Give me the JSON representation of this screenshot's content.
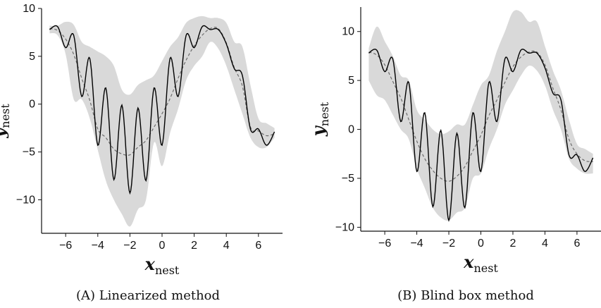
{
  "figure": {
    "caption_a": "(A) Linearized method",
    "caption_b": "(B) Blind box method"
  },
  "colors": {
    "band": "#d9d9d9",
    "true_line": "#000000",
    "mean_line": "#6b6b6b",
    "axis": "#111111"
  },
  "chart_data": [
    {
      "type": "line",
      "xlabel_main": "x",
      "xlabel_sub": "nest",
      "ylabel_main": "y",
      "ylabel_sub": "nest",
      "xlim": [
        -7.5,
        7.5
      ],
      "ylim": [
        -13.5,
        10
      ],
      "xticks": [
        -6,
        -4,
        -2,
        0,
        2,
        4,
        6
      ],
      "yticks": [
        10,
        5,
        0,
        -5,
        -10
      ],
      "xrange": [
        -7,
        7
      ],
      "grid": false,
      "legend": "none",
      "series": [
        {
          "role": "true_function",
          "style": "solid-black",
          "x": [
            -7,
            -6.5,
            -6,
            -5.5,
            -5,
            -4.5,
            -4,
            -3.5,
            -3,
            -2.5,
            -2,
            -1.5,
            -1,
            -0.5,
            0,
            0.5,
            1,
            1.5,
            2,
            2.5,
            3,
            3.5,
            4,
            4.5,
            5,
            5.5,
            6,
            6.5,
            7
          ],
          "y": [
            7.8,
            8.1,
            5.9,
            7.2,
            0.8,
            4.8,
            -4.3,
            1.7,
            -7.9,
            -0.1,
            -9.3,
            -0.4,
            -8.0,
            1.7,
            -4.3,
            4.8,
            0.8,
            7.2,
            5.9,
            8.1,
            7.8,
            7.8,
            6.3,
            3.7,
            3.0,
            -2.6,
            -2.6,
            -4.3,
            -2.9
          ]
        },
        {
          "role": "predictive_mean",
          "style": "dashed-gray",
          "x": [
            -7,
            -6.5,
            -6,
            -5.5,
            -5,
            -4.5,
            -4,
            -3.5,
            -3,
            -2.5,
            -2,
            -1.5,
            -1,
            -0.5,
            0,
            0.5,
            1,
            1.5,
            2,
            2.5,
            3,
            3.5,
            4,
            4.5,
            5,
            5.5,
            6,
            6.5,
            7
          ],
          "y": [
            7.9,
            7.7,
            6.8,
            5.2,
            2.7,
            0.4,
            -2.6,
            -3.5,
            -4.7,
            -5.2,
            -5.3,
            -4.5,
            -3.8,
            -2.4,
            -1.0,
            0.6,
            2.7,
            4.6,
            6.1,
            7.2,
            7.9,
            7.9,
            6.4,
            3.8,
            1.9,
            -2.4,
            -2.8,
            -3.3,
            -3.1
          ]
        },
        {
          "role": "uncertainty_band",
          "style": "gray-fill",
          "x": [
            -7,
            -6.5,
            -6,
            -5.5,
            -5,
            -4.5,
            -4,
            -3.5,
            -3,
            -2.5,
            -2,
            -1.5,
            -1,
            -0.5,
            0,
            0.5,
            1,
            1.5,
            2,
            2.5,
            3,
            3.5,
            4,
            4.5,
            5,
            5.5,
            6,
            6.5,
            7
          ],
          "lower": [
            7.4,
            7.2,
            5.2,
            0.5,
            0.5,
            -1.5,
            -4.8,
            -8.0,
            -10.0,
            -11.5,
            -12.8,
            -11.0,
            -10.0,
            -4.0,
            -6.5,
            -3.0,
            -0.5,
            2.5,
            4.0,
            5.0,
            6.5,
            5.8,
            4.0,
            1.5,
            -1.0,
            -3.5,
            -4.5,
            -4.5,
            -3.5
          ],
          "upper": [
            8.2,
            8.2,
            8.6,
            8.3,
            6.5,
            6.0,
            5.5,
            5.0,
            4.0,
            1.5,
            1.0,
            2.0,
            2.5,
            3.0,
            4.5,
            6.0,
            7.0,
            8.5,
            9.0,
            9.2,
            9.0,
            9.0,
            8.5,
            6.5,
            6.0,
            2.0,
            -1.5,
            -2.0,
            -2.5
          ]
        }
      ]
    },
    {
      "type": "line",
      "xlabel_main": "x",
      "xlabel_sub": "nest",
      "ylabel_main": "y",
      "ylabel_sub": "nest",
      "xlim": [
        -7.5,
        7.5
      ],
      "ylim": [
        -10.4,
        12.5
      ],
      "xticks": [
        -6,
        -4,
        -2,
        0,
        2,
        4,
        6
      ],
      "yticks": [
        10,
        5,
        0,
        -5,
        -10
      ],
      "xrange": [
        -7,
        7
      ],
      "grid": false,
      "legend": "none",
      "series": [
        {
          "role": "true_function",
          "style": "solid-black",
          "x": [
            -7,
            -6.5,
            -6,
            -5.5,
            -5,
            -4.5,
            -4,
            -3.5,
            -3,
            -2.5,
            -2,
            -1.5,
            -1,
            -0.5,
            0,
            0.5,
            1,
            1.5,
            2,
            2.5,
            3,
            3.5,
            4,
            4.5,
            5,
            5.5,
            6,
            6.5,
            7
          ],
          "y": [
            7.8,
            8.1,
            5.9,
            7.2,
            0.8,
            4.8,
            -4.3,
            1.7,
            -7.9,
            -0.1,
            -9.3,
            -0.4,
            -8.0,
            1.7,
            -4.3,
            4.8,
            0.8,
            7.2,
            5.9,
            8.1,
            7.8,
            7.8,
            6.3,
            3.7,
            3.0,
            -2.6,
            -2.6,
            -4.3,
            -2.9
          ]
        },
        {
          "role": "predictive_mean",
          "style": "dashed-gray",
          "x": [
            -7,
            -6.5,
            -6,
            -5.5,
            -5,
            -4.5,
            -4,
            -3.5,
            -3,
            -2.5,
            -2,
            -1.5,
            -1,
            -0.5,
            0,
            0.5,
            1,
            1.5,
            2,
            2.5,
            3,
            3.5,
            4,
            4.5,
            5,
            5.5,
            6,
            6.5,
            7
          ],
          "y": [
            7.9,
            7.6,
            6.6,
            4.9,
            3.2,
            1.0,
            -1.2,
            -3.0,
            -4.2,
            -5.0,
            -5.3,
            -4.8,
            -3.8,
            -2.2,
            -0.6,
            1.4,
            3.0,
            4.8,
            6.4,
            7.4,
            7.9,
            7.9,
            6.6,
            4.2,
            2.0,
            -1.0,
            -2.5,
            -3.2,
            -3.3
          ]
        },
        {
          "role": "uncertainty_band",
          "style": "gray-fill",
          "x": [
            -7,
            -6.5,
            -6,
            -5.5,
            -5,
            -4.5,
            -4,
            -3.5,
            -3,
            -2.5,
            -2,
            -1.5,
            -1,
            -0.5,
            0,
            0.5,
            1,
            1.5,
            2,
            2.5,
            3,
            3.5,
            4,
            4.5,
            5,
            5.5,
            6,
            6.5,
            7
          ],
          "lower": [
            5.0,
            3.5,
            3.0,
            1.5,
            0.0,
            -1.0,
            -4.0,
            -6.0,
            -8.0,
            -9.0,
            -9.3,
            -8.5,
            -8.0,
            -5.0,
            -4.5,
            -2.0,
            0.0,
            2.5,
            4.0,
            5.5,
            6.5,
            6.0,
            4.5,
            2.0,
            0.0,
            -3.0,
            -4.0,
            -4.5,
            -4.5
          ]
        },
        {
          "role": "uncertainty_band_upper",
          "style": "gray-fill",
          "x": [
            -7,
            -6.5,
            -6,
            -5.5,
            -5,
            -4.5,
            -4,
            -3.5,
            -3,
            -2.5,
            -2,
            -1.5,
            -1,
            -0.5,
            0,
            0.5,
            1,
            1.5,
            2,
            2.5,
            3,
            3.5,
            4,
            4.5,
            5,
            5.5,
            6,
            6.5,
            7
          ],
          "upper": [
            8.3,
            10.5,
            9.0,
            7.5,
            5.5,
            5.0,
            2.0,
            1.0,
            0.0,
            -0.5,
            -0.2,
            0.5,
            0.5,
            2.5,
            4.5,
            5.5,
            8.0,
            10.0,
            12.0,
            12.0,
            11.0,
            11.0,
            8.5,
            6.0,
            4.0,
            1.0,
            -1.5,
            -2.0,
            -2.5
          ]
        }
      ]
    }
  ]
}
